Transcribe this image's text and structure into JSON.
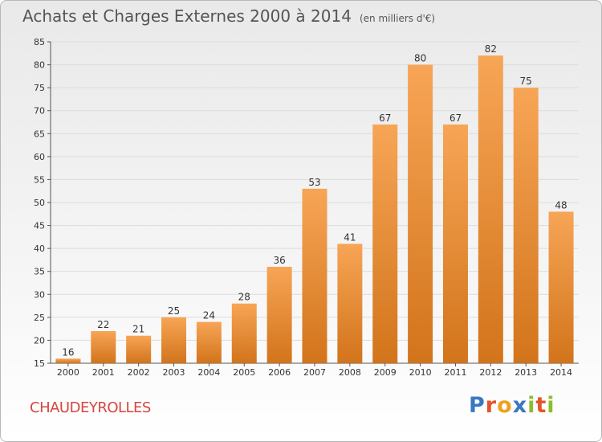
{
  "title": "Achats et Charges Externes 2000 à 2014",
  "unit_note": "(en milliers d'€)",
  "commune": "CHAUDEYROLLES",
  "brand": {
    "text": "Proxiti",
    "letters": [
      {
        "ch": "P",
        "color": "#3b78c2"
      },
      {
        "ch": "r",
        "color": "#e2552b"
      },
      {
        "ch": "o",
        "color": "#f0a11b"
      },
      {
        "ch": "x",
        "color": "#3b78c2"
      },
      {
        "ch": "i",
        "color": "#8bbd2e"
      },
      {
        "ch": "t",
        "color": "#e2552b"
      },
      {
        "ch": "i",
        "color": "#8bbd2e"
      }
    ]
  },
  "chart_data": {
    "type": "bar",
    "categories": [
      "2000",
      "2001",
      "2002",
      "2003",
      "2004",
      "2005",
      "2006",
      "2007",
      "2008",
      "2009",
      "2010",
      "2011",
      "2012",
      "2013",
      "2014"
    ],
    "values": [
      16,
      22,
      21,
      25,
      24,
      28,
      36,
      53,
      41,
      67,
      80,
      67,
      82,
      75,
      48
    ],
    "ylim": [
      15,
      85
    ],
    "yticks": [
      15,
      20,
      25,
      30,
      35,
      40,
      45,
      50,
      55,
      60,
      65,
      70,
      75,
      80,
      85
    ],
    "grid": true,
    "bar_color_top": "#f7a556",
    "bar_color_bottom": "#d2741b"
  }
}
